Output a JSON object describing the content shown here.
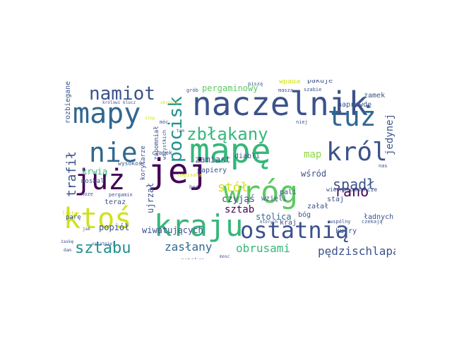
{
  "words": [
    {
      "text": "naczelnik",
      "color": "#3b528b",
      "rotated": false
    },
    {
      "text": "mapę",
      "color": "#35b779",
      "rotated": false
    },
    {
      "text": "wróg",
      "color": "#5ec962",
      "rotated": false
    },
    {
      "text": "kraju",
      "color": "#35b779",
      "rotated": false
    },
    {
      "text": "już",
      "color": "#440154",
      "rotated": false
    },
    {
      "text": "jej",
      "color": "#440154",
      "rotated": false
    },
    {
      "text": "ktoś",
      "color": "#d0e11c",
      "rotated": false
    },
    {
      "text": "mapy",
      "color": "#31688e",
      "rotated": false
    },
    {
      "text": "tuż",
      "color": "#31688e",
      "rotated": false
    },
    {
      "text": "ostatnią",
      "color": "#3b528b",
      "rotated": false
    },
    {
      "text": "nie",
      "color": "#31688e",
      "rotated": false
    },
    {
      "text": "król",
      "color": "#3b528b",
      "rotated": false
    },
    {
      "text": "namiot",
      "color": "#3b528b",
      "rotated": false
    },
    {
      "text": "pocisk",
      "color": "#21918c",
      "rotated": true
    },
    {
      "text": "zbłąkany",
      "color": "#35b779",
      "rotated": false
    },
    {
      "text": "sztabu",
      "color": "#21918c",
      "rotated": false
    },
    {
      "text": "spadł",
      "color": "#3b528b",
      "rotated": false
    },
    {
      "text": "rano",
      "color": "#440154",
      "rotated": false
    },
    {
      "text": "trafił",
      "color": "#3b528b",
      "rotated": true
    },
    {
      "text": "stół",
      "color": "#d0e11c",
      "rotated": false
    },
    {
      "text": "obrusami",
      "color": "#35b779",
      "rotated": false
    },
    {
      "text": "pędzischlapany",
      "color": "#3b528b",
      "rotated": false
    },
    {
      "text": "zasłany",
      "color": "#31688e",
      "rotated": false
    },
    {
      "text": "pergaminowy",
      "color": "#5ec962",
      "rotated": false
    },
    {
      "text": "map",
      "color": "#90d743",
      "rotated": false
    },
    {
      "text": "jedynej",
      "color": "#3b528b",
      "rotated": true
    },
    {
      "text": "krwią",
      "color": "#35b779",
      "rotated": false
    },
    {
      "text": "sztab",
      "color": "#440154",
      "rotated": false
    },
    {
      "text": "czyjąś",
      "color": "#3b528b",
      "rotated": false
    },
    {
      "text": "stolica",
      "color": "#31688e",
      "rotated": false
    },
    {
      "text": "popiół",
      "color": "#3b528b",
      "rotated": false
    },
    {
      "text": "ujrzał",
      "color": "#3b528b",
      "rotated": true
    },
    {
      "text": "wśród",
      "color": "#3b528b",
      "rotated": false
    },
    {
      "text": "zamiast",
      "color": "#3b528b",
      "rotated": false
    },
    {
      "text": "wiwatujących",
      "color": "#3b528b",
      "rotated": false
    },
    {
      "text": "wpada",
      "color": "#d0e11c",
      "rotated": false
    },
    {
      "text": "pakuje",
      "color": "#3b528b",
      "rotated": false
    },
    {
      "text": "naprawdę",
      "color": "#3b528b",
      "rotated": false
    },
    {
      "text": "zamek",
      "color": "#3b528b",
      "rotated": false
    },
    {
      "text": "papiery",
      "color": "#3b528b",
      "rotated": false
    },
    {
      "text": "diabli",
      "color": "#3b528b",
      "rotated": false
    },
    {
      "text": "teraz",
      "color": "#3b528b",
      "rotated": false
    },
    {
      "text": "pali",
      "color": "#3b528b",
      "rotated": false
    },
    {
      "text": "wzięli",
      "color": "#3b528b",
      "rotated": false
    },
    {
      "text": "załał",
      "color": "#3b528b",
      "rotated": false
    },
    {
      "text": "staj",
      "color": "#3b528b",
      "rotated": false
    },
    {
      "text": "bóg",
      "color": "#3b528b",
      "rotated": false
    },
    {
      "text": "kraj",
      "color": "#3b528b",
      "rotated": false
    },
    {
      "text": "kufry",
      "color": "#3b528b",
      "rotated": false
    },
    {
      "text": "ładnych",
      "color": "#3b528b",
      "rotated": false
    },
    {
      "text": "rozbiegane",
      "color": "#3b528b",
      "rotated": true
    },
    {
      "text": "moskal",
      "color": "#3b528b",
      "rotated": false
    },
    {
      "text": "korytarze",
      "color": "#3b528b",
      "rotated": true
    },
    {
      "text": "zapomniał",
      "color": "#3b528b",
      "rotated": true
    },
    {
      "text": "masakra",
      "color": "#3b528b",
      "rotated": false
    },
    {
      "text": "parę",
      "color": "#3b528b",
      "rotated": false
    },
    {
      "text": "wysokość",
      "color": "#3b528b",
      "rotated": false
    },
    {
      "text": "wiernopoddańcze",
      "color": "#3b528b",
      "rotated": false
    },
    {
      "text": "masza",
      "color": "#3b528b",
      "rotated": false
    },
    {
      "text": "grób",
      "color": "#3b528b",
      "rotated": false
    },
    {
      "text": "piszą",
      "color": "#3b528b",
      "rotated": false
    },
    {
      "text": "szabie",
      "color": "#3b528b",
      "rotated": false
    },
    {
      "text": "niej",
      "color": "#3b528b",
      "rotated": false
    },
    {
      "text": "nas",
      "color": "#3b528b",
      "rotated": false
    },
    {
      "text": "czapek",
      "color": "#3b528b",
      "rotated": false
    },
    {
      "text": "wszystkich",
      "color": "#3b528b",
      "rotated": true
    },
    {
      "text": "napisała",
      "color": "#d0e11c",
      "rotated": false
    },
    {
      "text": "móc",
      "color": "#3b528b",
      "rotated": false
    },
    {
      "text": "bęc",
      "color": "#3b528b",
      "rotated": false
    },
    {
      "text": "listy",
      "color": "#d0e11c",
      "rotated": false
    },
    {
      "text": "pergamin",
      "color": "#3b528b",
      "rotated": false
    },
    {
      "text": "królowi",
      "color": "#3b528b",
      "rotated": false
    },
    {
      "text": "klucz",
      "color": "#3b528b",
      "rotated": false
    },
    {
      "text": "okruszę",
      "color": "#d0e11c",
      "rotated": false
    },
    {
      "text": "stop",
      "color": "#d0e11c",
      "rotated": false
    },
    {
      "text": "tam",
      "color": "#3b528b",
      "rotated": false
    },
    {
      "text": "moze",
      "color": "#3b528b",
      "rotated": false
    },
    {
      "text": "wspólny",
      "color": "#3b528b",
      "rotated": false
    },
    {
      "text": "czekają",
      "color": "#3b528b",
      "rotated": false
    },
    {
      "text": "których",
      "color": "#3b528b",
      "rotated": false
    },
    {
      "text": "ostatniej",
      "color": "#3b528b",
      "rotated": false
    },
    {
      "text": "żaskę",
      "color": "#3b528b",
      "rotated": false
    },
    {
      "text": "dam",
      "color": "#3b528b",
      "rotated": false
    },
    {
      "text": "jak",
      "color": "#3b528b",
      "rotated": false
    },
    {
      "text": "mosc",
      "color": "#3b528b",
      "rotated": false
    },
    {
      "text": "woła",
      "color": "#3b528b",
      "rotated": false
    }
  ]
}
